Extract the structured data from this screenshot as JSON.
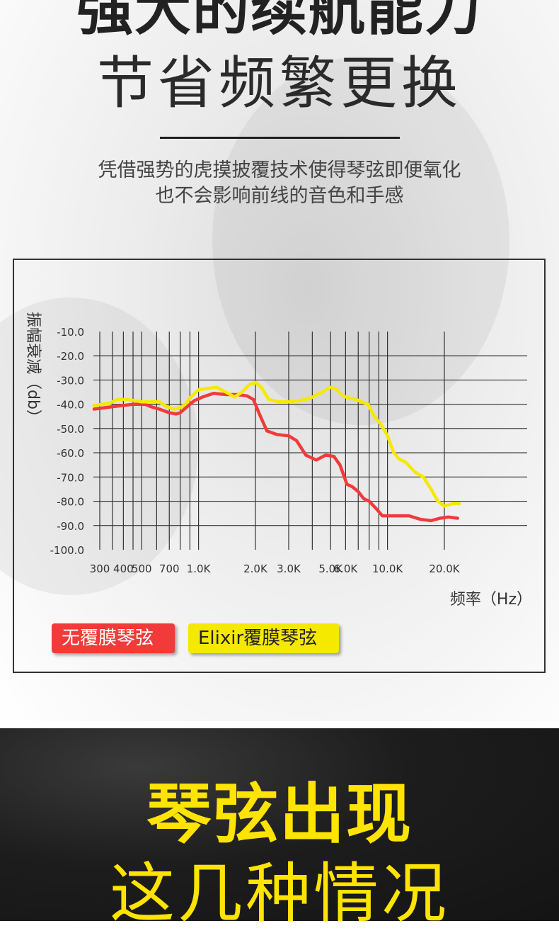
{
  "header": {
    "title_bold": "强大的续航能力",
    "title_light": "节省频繁更换",
    "subtitle_line1": "凭借强势的虎摸披覆技术使得琴弦即便氧化",
    "subtitle_line2": "也不会影响前线的音色和手感"
  },
  "chart_data": {
    "type": "line",
    "title": "",
    "ylabel": "振幅衰减（db）",
    "xlabel": "频率（Hz）",
    "x_scale": "log",
    "xlim": [
      280,
      24000
    ],
    "ylim": [
      -100,
      -10
    ],
    "grid": true,
    "legend_position": "bottom-left",
    "y_ticks": [
      -10,
      -20,
      -30,
      -40,
      -50,
      -60,
      -70,
      -80,
      -90,
      -100
    ],
    "y_tick_labels": [
      "-10.0",
      "-20.0",
      "-30.0",
      "-40.0",
      "-50.0",
      "-60.0",
      "-70.0",
      "-80.0",
      "-90.0",
      "-100.0"
    ],
    "x_tick_values": [
      300,
      400,
      500,
      700,
      1000,
      2000,
      3000,
      5000,
      6000,
      10000,
      20000
    ],
    "x_tick_labels": [
      "300",
      "400",
      "500",
      "700",
      "1.0K",
      "2.0K",
      "3.0K",
      "5.0K",
      "6.0K",
      "10.0K",
      "20.0K"
    ],
    "x_grid": [
      300,
      350,
      400,
      450,
      500,
      600,
      700,
      800,
      900,
      1000,
      2000,
      3000,
      4000,
      5000,
      6000,
      7000,
      8000,
      9000,
      10000,
      20000
    ],
    "series": [
      {
        "name": "无覆膜琴弦",
        "color": "#f23a3a",
        "x": [
          280,
          350,
          450,
          520,
          560,
          620,
          700,
          760,
          800,
          870,
          950,
          1050,
          1200,
          1400,
          1600,
          1800,
          1950,
          2100,
          2300,
          2600,
          3000,
          3300,
          3700,
          4200,
          4700,
          5200,
          5600,
          6100,
          6500,
          7000,
          7500,
          8000,
          8700,
          9400,
          10000,
          11000,
          13000,
          15000,
          17000,
          19000,
          21000,
          23500
        ],
        "y": [
          -42,
          -41,
          -40,
          -40,
          -41,
          -42,
          -43.5,
          -44,
          -43.5,
          -41,
          -38.5,
          -37,
          -35.5,
          -36,
          -36,
          -36.5,
          -38,
          -44,
          -51,
          -52.5,
          -53,
          -55,
          -61,
          -63,
          -61,
          -61.5,
          -65,
          -73,
          -74,
          -76,
          -79,
          -80,
          -83,
          -86,
          -86,
          -86,
          -86,
          -87.5,
          -88,
          -87,
          -86.5,
          -87
        ]
      },
      {
        "name": "Elixir覆膜琴弦",
        "color": "#f6e900",
        "x": [
          280,
          310,
          340,
          370,
          420,
          500,
          560,
          620,
          680,
          740,
          790,
          850,
          910,
          1000,
          1100,
          1250,
          1400,
          1550,
          1700,
          1850,
          2000,
          2150,
          2350,
          2650,
          3000,
          3400,
          3900,
          4500,
          5000,
          5400,
          5800,
          6300,
          6800,
          7300,
          7900,
          8500,
          9200,
          10000,
          10800,
          11500,
          12500,
          14000,
          15500,
          17000,
          18500,
          20000,
          22000,
          24000
        ],
        "y": [
          -40.5,
          -40,
          -39.5,
          -38,
          -38,
          -39,
          -39,
          -39,
          -41,
          -42,
          -41.5,
          -40,
          -37,
          -34,
          -33.5,
          -33,
          -35,
          -37,
          -35,
          -32,
          -31,
          -33,
          -38,
          -39,
          -39,
          -38.5,
          -37.5,
          -35,
          -33,
          -34,
          -36.5,
          -37.5,
          -38,
          -39,
          -40,
          -45,
          -48,
          -53,
          -60,
          -62.5,
          -64,
          -68,
          -70,
          -75,
          -80,
          -82,
          -81,
          -81
        ]
      }
    ]
  },
  "legend": {
    "red_label": "无覆膜琴弦",
    "yellow_label": "Elixir覆膜琴弦"
  },
  "footer": {
    "title_bold": "琴弦出现",
    "title_light": "这几种情况"
  }
}
